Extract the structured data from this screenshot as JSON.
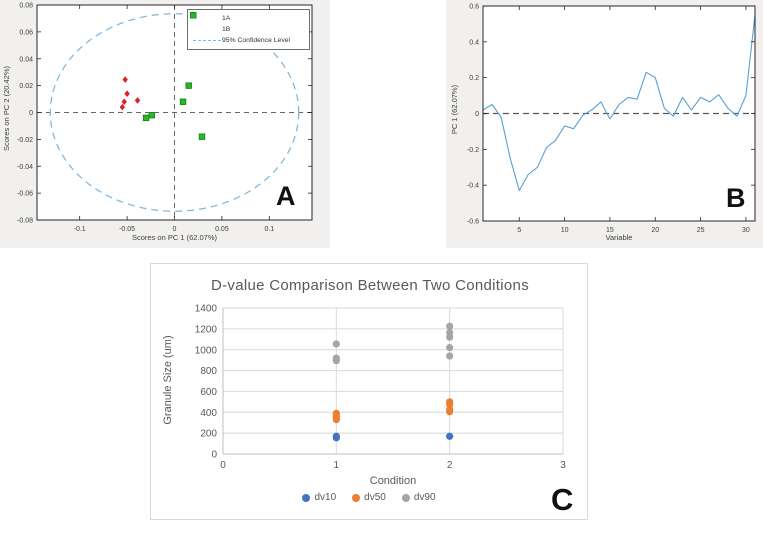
{
  "chart_data": [
    {
      "id": "pca-scores",
      "type": "scatter",
      "panel_label": "A",
      "xlabel": "Scores on PC 1 (62.07%)",
      "ylabel": "Scores on PC 2 (20.42%)",
      "xlim": [
        -0.145,
        0.145
      ],
      "ylim": [
        -0.08,
        0.08
      ],
      "xticks": [
        -0.1,
        -0.05,
        0,
        0.05,
        0.1
      ],
      "yticks": [
        0.08,
        0.06,
        0.04,
        0.02,
        0,
        -0.02,
        -0.04,
        -0.06,
        -0.08
      ],
      "grid": false,
      "legend_position": "top-right",
      "series": [
        {
          "name": "1A",
          "marker": "diamond",
          "color": "#e01f26",
          "points": [
            [
              -0.052,
              0.0245
            ],
            [
              -0.05,
              0.014
            ],
            [
              -0.039,
              0.009
            ],
            [
              -0.053,
              0.008
            ],
            [
              -0.055,
              0.004
            ]
          ]
        },
        {
          "name": "1B",
          "marker": "square",
          "color": "#2eb52e",
          "edge_color": "#1a8a1a",
          "points": [
            [
              0.015,
              0.02
            ],
            [
              0.009,
              0.008
            ],
            [
              -0.024,
              -0.002
            ],
            [
              -0.03,
              -0.004
            ],
            [
              0.029,
              -0.018
            ]
          ]
        }
      ],
      "confidence_ellipse": {
        "label": "95% Confidence Level",
        "cx": 0,
        "cy": 0,
        "rx": 0.131,
        "ry": 0.0735,
        "color": "#85b8da"
      },
      "crosshair_color": "#666666"
    },
    {
      "id": "pc1-loadings",
      "type": "line",
      "panel_label": "B",
      "xlabel": "Variable",
      "ylabel": "PC 1 (62.07%)",
      "xlim": [
        1,
        31
      ],
      "ylim": [
        -0.6,
        0.6
      ],
      "xticks": [
        5,
        10,
        15,
        20,
        25,
        30
      ],
      "yticks": [
        0.6,
        0.4,
        0.2,
        0,
        -0.2,
        -0.4,
        -0.6
      ],
      "grid": false,
      "zero_line": true,
      "zero_line_color": "#555555",
      "line_color": "#57a0d3",
      "x": [
        1,
        2,
        3,
        4,
        5,
        6,
        7,
        8,
        9,
        10,
        11,
        12,
        13,
        14,
        15,
        16,
        17,
        18,
        19,
        20,
        21,
        22,
        23,
        24,
        25,
        26,
        27,
        28,
        29,
        30,
        31
      ],
      "y": [
        0.02,
        0.05,
        -0.02,
        -0.25,
        -0.43,
        -0.34,
        -0.3,
        -0.19,
        -0.15,
        -0.07,
        -0.085,
        -0.01,
        0.02,
        0.065,
        -0.03,
        0.05,
        0.09,
        0.08,
        0.23,
        0.2,
        0.03,
        -0.015,
        0.09,
        0.02,
        0.09,
        0.065,
        0.105,
        0.03,
        -0.015,
        0.1,
        0.55
      ]
    },
    {
      "id": "d-value-comparison",
      "type": "scatter",
      "panel_label": "C",
      "title": "D-value Comparison Between Two Conditions",
      "xlabel": "Condition",
      "ylabel": "Granule Size (um)",
      "xlim": [
        0,
        3
      ],
      "ylim": [
        0,
        1400
      ],
      "xticks": [
        0,
        1,
        2,
        3
      ],
      "yticks": [
        0,
        200,
        400,
        600,
        800,
        1000,
        1200,
        1400
      ],
      "grid": true,
      "grid_color": "#d9d9d9",
      "axis_color": "#bfbfbf",
      "text_color": "#595959",
      "legend_position": "bottom",
      "series": [
        {
          "name": "dv10",
          "marker": "circle",
          "color": "#4472c4",
          "points": [
            [
              1,
              155
            ],
            [
              1,
              170
            ],
            [
              2,
              170
            ]
          ]
        },
        {
          "name": "dv50",
          "marker": "circle",
          "color": "#ed7d31",
          "points": [
            [
              1,
              330
            ],
            [
              1,
              350
            ],
            [
              1,
              365
            ],
            [
              1,
              390
            ],
            [
              2,
              405
            ],
            [
              2,
              425
            ],
            [
              2,
              475
            ],
            [
              2,
              500
            ]
          ]
        },
        {
          "name": "dv90",
          "marker": "circle",
          "color": "#a5a5a5",
          "points": [
            [
              1,
              895
            ],
            [
              1,
              920
            ],
            [
              1,
              1055
            ],
            [
              2,
              940
            ],
            [
              2,
              1020
            ],
            [
              2,
              1120
            ],
            [
              2,
              1165
            ],
            [
              2,
              1225
            ]
          ]
        }
      ]
    }
  ]
}
